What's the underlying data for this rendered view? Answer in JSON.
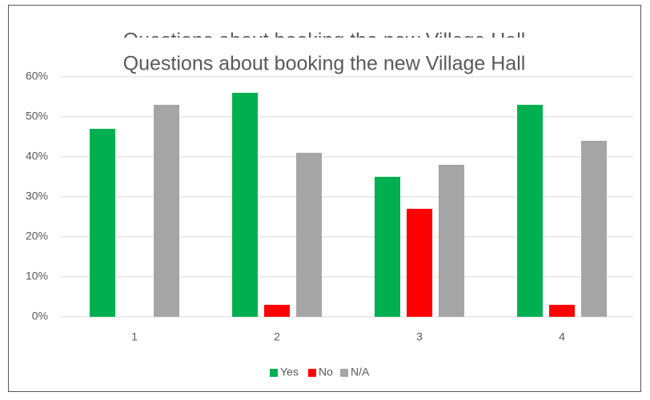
{
  "chart_data": {
    "type": "bar",
    "title": "Questions about booking the new Village Hall",
    "categories": [
      "1",
      "2",
      "3",
      "4"
    ],
    "series": [
      {
        "name": "Yes",
        "color": "#00b050",
        "values": [
          47,
          56,
          35,
          53
        ]
      },
      {
        "name": "No",
        "color": "#ff0000",
        "values": [
          0,
          3,
          27,
          3
        ]
      },
      {
        "name": "N/A",
        "color": "#a5a5a5",
        "values": [
          53,
          41,
          38,
          44
        ]
      }
    ],
    "ylim": [
      0,
      60
    ],
    "yticks": [
      {
        "value": 0,
        "label": "0%"
      },
      {
        "value": 10,
        "label": "10%"
      },
      {
        "value": 20,
        "label": "20%"
      },
      {
        "value": 30,
        "label": "30%"
      },
      {
        "value": 40,
        "label": "40%"
      },
      {
        "value": 50,
        "label": "50%"
      },
      {
        "value": 60,
        "label": "60%"
      }
    ],
    "grid": true,
    "legend": "bottom"
  }
}
